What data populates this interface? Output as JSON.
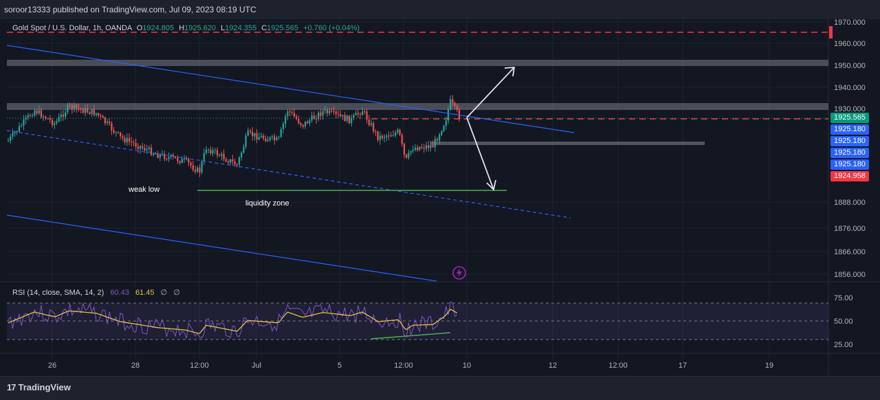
{
  "header": {
    "published": "soroor13333 published on TradingView.com, Jul 09, 2023 08:19 UTC"
  },
  "footer": {
    "brand": "TradingView",
    "brand_icon": "tradingview-logo-icon"
  },
  "chart_data": {
    "type": "candlestick",
    "symbol_label": "Gold Spot / U.S. Dollar, 1h, OANDA",
    "ohlc": {
      "o_label": "O",
      "o": "1924.805",
      "h_label": "H",
      "h": "1925.620",
      "l_label": "L",
      "l": "1924.355",
      "c_label": "C",
      "c": "1925.565",
      "change": "+0.760 (+0.04%)"
    },
    "y_axis": {
      "ticks": [
        "1970.000",
        "1960.000",
        "1950.000",
        "1940.000",
        "1930.000",
        "1888.000",
        "1876.000",
        "1866.000",
        "1856.000"
      ]
    },
    "price_badges": [
      {
        "value": "1925.565",
        "color": "#089981"
      },
      {
        "value": "1925.180",
        "color": "#2962ff"
      },
      {
        "value": "1925.180",
        "color": "#2962ff"
      },
      {
        "value": "1925.180",
        "color": "#2962ff"
      },
      {
        "value": "1925.180",
        "color": "#2962ff"
      },
      {
        "value": "1924.958",
        "color": "#f23645"
      }
    ],
    "x_axis": {
      "ticks": [
        "26",
        "28",
        "12:00",
        "Jul",
        "5",
        "12:00",
        "10",
        "12",
        "12:00",
        "17",
        "19"
      ]
    },
    "annotations": {
      "weak_low": "weak low",
      "liquidity": "liquidity zone"
    },
    "up_color": "#26a69a",
    "down_color": "#ef5350",
    "trend_color": "#2962ff",
    "rsi": {
      "label": "RSI (14, close, SMA, 14, 2)",
      "rsi_value": "60.43",
      "sma_value": "61.45",
      "empty1": "∅",
      "empty2": "∅",
      "ticks": [
        "75.00",
        "50.00",
        "25.00"
      ],
      "upper": 70,
      "middle": 50,
      "lower": 30
    }
  }
}
